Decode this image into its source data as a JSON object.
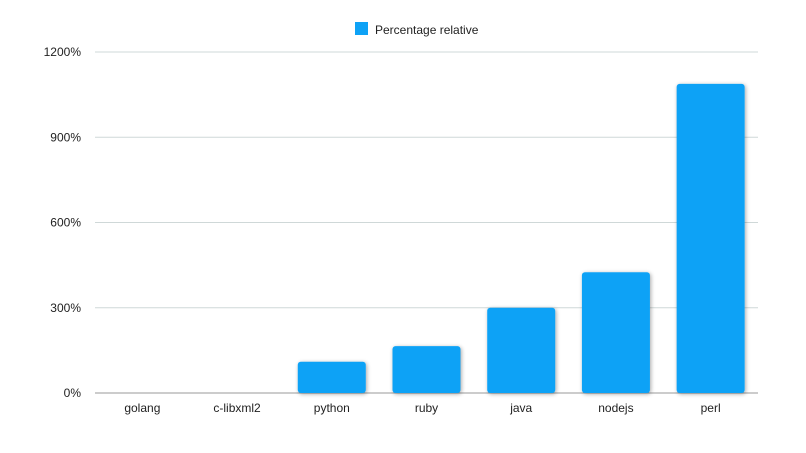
{
  "chart_data": {
    "type": "bar",
    "categories": [
      "golang",
      "c-libxml2",
      "python",
      "ruby",
      "java",
      "nodejs",
      "perl"
    ],
    "series": [
      {
        "name": "Percentage relative",
        "values": [
          0,
          0,
          110,
          165,
          300,
          425,
          1088
        ],
        "color": "#0ea2f6"
      }
    ],
    "ylim": [
      0,
      1200
    ],
    "yticks": [
      0,
      300,
      600,
      900,
      1200
    ],
    "ytick_suffix": "%",
    "grid": true,
    "legend": "top-center",
    "bar_shadow": true
  }
}
